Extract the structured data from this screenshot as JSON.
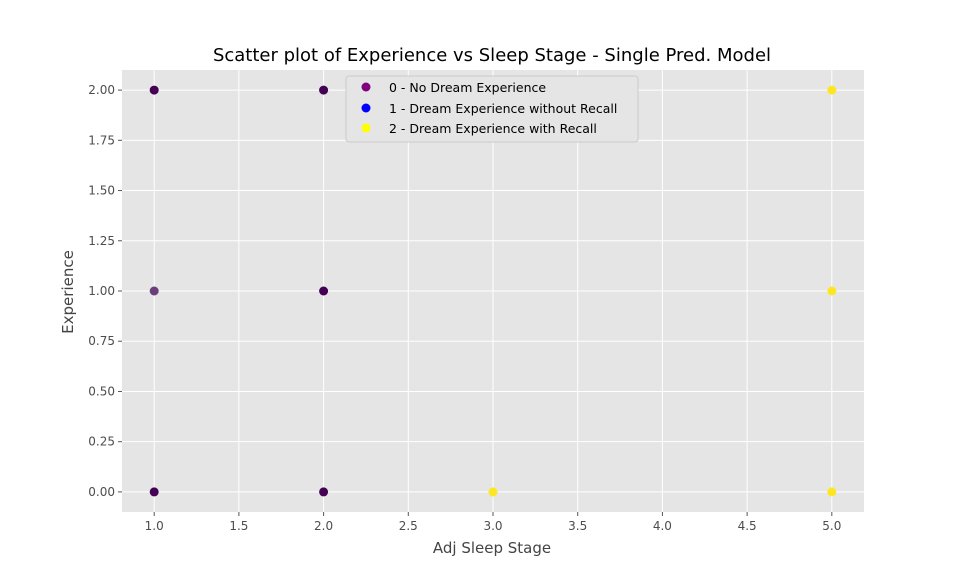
{
  "chart_data": {
    "type": "scatter",
    "title": "Scatter plot of Experience vs Sleep Stage - Single Pred. Model",
    "xlabel": "Adj Sleep Stage",
    "ylabel": "Experience",
    "xlim": [
      0.81,
      5.19
    ],
    "ylim": [
      -0.1,
      2.1
    ],
    "xticks": [
      1.0,
      1.5,
      2.0,
      2.5,
      3.0,
      3.5,
      4.0,
      4.5,
      5.0
    ],
    "xtick_labels": [
      "1.0",
      "1.5",
      "2.0",
      "2.5",
      "3.0",
      "3.5",
      "4.0",
      "4.5",
      "5.0"
    ],
    "yticks": [
      0.0,
      0.25,
      0.5,
      0.75,
      1.0,
      1.25,
      1.5,
      1.75,
      2.0
    ],
    "ytick_labels": [
      "0.00",
      "0.25",
      "0.50",
      "0.75",
      "1.00",
      "1.25",
      "1.50",
      "1.75",
      "2.00"
    ],
    "grid": true,
    "legend_position": "top-center",
    "legend": [
      {
        "label": "0 - No Dream Experience",
        "color": "#800080"
      },
      {
        "label": "1 - Dream Experience without Recall",
        "color": "#0000ff"
      },
      {
        "label": "2 - Dream Experience with Recall",
        "color": "#ffff00"
      }
    ],
    "points": [
      {
        "x": 1.0,
        "y": 2.0,
        "color": "#440154"
      },
      {
        "x": 1.0,
        "y": 1.0,
        "color": "#6a3d7c"
      },
      {
        "x": 1.0,
        "y": 0.0,
        "color": "#440154"
      },
      {
        "x": 2.0,
        "y": 2.0,
        "color": "#440154"
      },
      {
        "x": 2.0,
        "y": 1.0,
        "color": "#440154"
      },
      {
        "x": 2.0,
        "y": 0.0,
        "color": "#440154"
      },
      {
        "x": 3.0,
        "y": 0.0,
        "color": "#fde725"
      },
      {
        "x": 5.0,
        "y": 2.0,
        "color": "#fde725"
      },
      {
        "x": 5.0,
        "y": 1.0,
        "color": "#fde725"
      },
      {
        "x": 5.0,
        "y": 0.0,
        "color": "#fde725"
      }
    ]
  },
  "colors": {
    "plot_background": "#e5e5e5",
    "grid": "#ffffff"
  }
}
